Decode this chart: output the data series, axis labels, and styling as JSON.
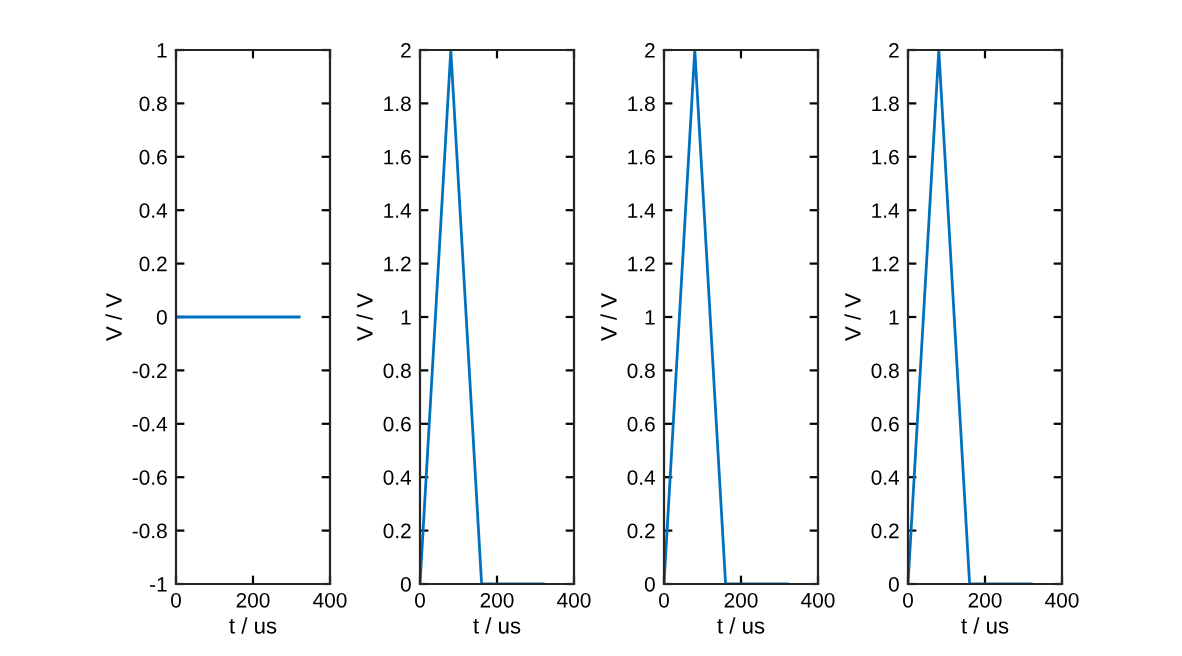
{
  "chart_data": [
    {
      "type": "line",
      "x": [
        0,
        320
      ],
      "values": [
        0,
        0
      ],
      "color": "#0072bd",
      "xlabel": "t / us",
      "ylabel": "V / V",
      "xlim": [
        0,
        400
      ],
      "xticks": [
        0,
        200,
        400
      ],
      "ylim": [
        -1,
        1
      ],
      "yticks": [
        -1,
        -0.8,
        -0.6,
        -0.4,
        -0.2,
        0,
        0.2,
        0.4,
        0.6,
        0.8,
        1
      ],
      "grid": false,
      "legend": false
    },
    {
      "type": "line",
      "x": [
        0,
        80,
        160,
        320
      ],
      "values": [
        0,
        2,
        0,
        0
      ],
      "color": "#0072bd",
      "xlabel": "t / us",
      "ylabel": "V / V",
      "xlim": [
        0,
        400
      ],
      "xticks": [
        0,
        200,
        400
      ],
      "ylim": [
        0,
        2
      ],
      "yticks": [
        0,
        0.2,
        0.4,
        0.6,
        0.8,
        1,
        1.2,
        1.4,
        1.6,
        1.8,
        2
      ],
      "grid": false,
      "legend": false
    },
    {
      "type": "line",
      "x": [
        0,
        80,
        160,
        320
      ],
      "values": [
        0,
        2,
        0,
        0
      ],
      "color": "#0072bd",
      "xlabel": "t / us",
      "ylabel": "V / V",
      "xlim": [
        0,
        400
      ],
      "xticks": [
        0,
        200,
        400
      ],
      "ylim": [
        0,
        2
      ],
      "yticks": [
        0,
        0.2,
        0.4,
        0.6,
        0.8,
        1,
        1.2,
        1.4,
        1.6,
        1.8,
        2
      ],
      "grid": false,
      "legend": false
    },
    {
      "type": "line",
      "x": [
        0,
        80,
        160,
        320
      ],
      "values": [
        0,
        2,
        0,
        0
      ],
      "color": "#0072bd",
      "xlabel": "t / us",
      "ylabel": "V / V",
      "xlim": [
        0,
        400
      ],
      "xticks": [
        0,
        200,
        400
      ],
      "ylim": [
        0,
        2
      ],
      "yticks": [
        0,
        0.2,
        0.4,
        0.6,
        0.8,
        1,
        1.2,
        1.4,
        1.6,
        1.8,
        2
      ],
      "grid": false,
      "legend": false
    }
  ]
}
